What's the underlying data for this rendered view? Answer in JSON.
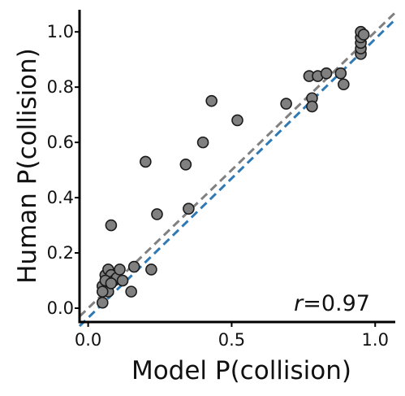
{
  "chart_data": {
    "type": "scatter",
    "xlabel": "Model P(collision)",
    "ylabel": "Human P(collision)",
    "xlim": [
      -0.03,
      1.07
    ],
    "ylim": [
      -0.05,
      1.08
    ],
    "xticks": [
      0.0,
      0.5,
      1.0
    ],
    "xtick_labels": [
      "0.0",
      "0.5",
      "1.0"
    ],
    "yticks": [
      0.0,
      0.2,
      0.4,
      0.6,
      0.8,
      1.0
    ],
    "ytick_labels": [
      "0.0",
      "0.2",
      "0.4",
      "0.6",
      "0.8",
      "1.0"
    ],
    "annotation": {
      "var": "r",
      "text": "=0.97"
    },
    "grid": false,
    "colors": {
      "points": "#808080",
      "point_edge": "#1a1a1a",
      "identity_line": "#808080",
      "fit_line": "#2f7ab5"
    },
    "identity_line": {
      "x": [
        -0.03,
        1.07
      ],
      "y": [
        -0.03,
        1.07
      ]
    },
    "fit_line": {
      "x": [
        -0.03,
        1.07
      ],
      "y": [
        -0.065,
        1.045
      ]
    },
    "points": {
      "x": [
        0.05,
        0.06,
        0.07,
        0.08,
        0.09,
        0.1,
        0.11,
        0.12,
        0.05,
        0.07,
        0.06,
        0.08,
        0.05,
        0.15,
        0.16,
        0.22,
        0.24,
        0.2,
        0.34,
        0.35,
        0.4,
        0.43,
        0.52,
        0.69,
        0.78,
        0.78,
        0.77,
        0.8,
        0.83,
        0.88,
        0.89,
        0.95,
        0.95,
        0.95,
        0.95,
        0.95,
        0.96,
        0.08
      ],
      "y": [
        0.08,
        0.12,
        0.14,
        0.12,
        0.1,
        0.11,
        0.14,
        0.1,
        0.02,
        0.06,
        0.1,
        0.09,
        0.06,
        0.06,
        0.15,
        0.14,
        0.34,
        0.53,
        0.52,
        0.36,
        0.6,
        0.75,
        0.68,
        0.74,
        0.76,
        0.73,
        0.84,
        0.84,
        0.85,
        0.85,
        0.81,
        0.92,
        0.94,
        0.96,
        0.98,
        1.0,
        0.99,
        0.3
      ]
    }
  }
}
